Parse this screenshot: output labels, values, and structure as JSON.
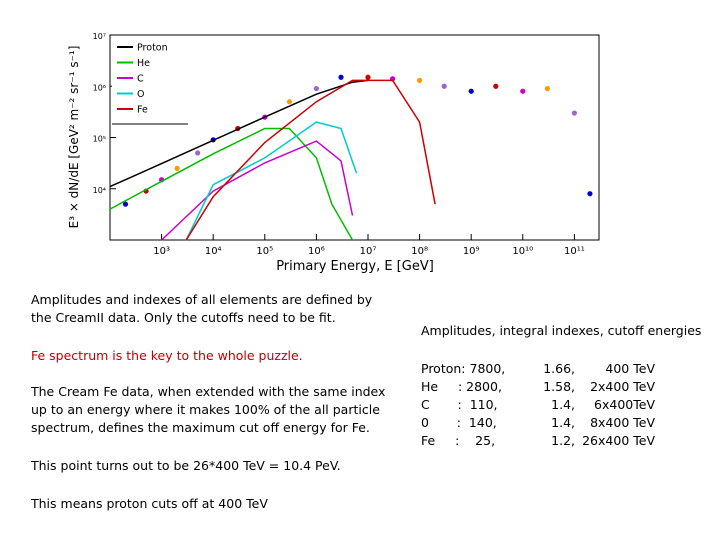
{
  "chart_data": {
    "type": "line",
    "xscale": "log",
    "yscale": "log",
    "xlim": [
      100,
      300000000000
    ],
    "ylim": [
      1000,
      10000000
    ],
    "xlabel": "Primary Energy, E [GeV]",
    "ylabel": "E³ × dN/dE [GeV² m⁻² sr⁻¹ s⁻¹]",
    "x_tick_labels": [
      "10³",
      "10⁴",
      "10⁵",
      "10⁶",
      "10⁷",
      "10⁸",
      "10⁹",
      "10¹⁰",
      "10¹¹"
    ],
    "y_tick_labels": [
      "10⁴",
      "10⁵",
      "10⁶",
      "10⁷"
    ],
    "legend_position": "top-left",
    "series": [
      {
        "name": "Proton",
        "color": "#000000",
        "x": [
          100,
          1000,
          10000,
          100000,
          1000000,
          5000000,
          10000000
        ],
        "y": [
          11000,
          31000,
          88000,
          250000,
          700000,
          1200000,
          1300000
        ]
      },
      {
        "name": "He",
        "color": "#00bb00",
        "x": [
          100,
          1000,
          10000,
          100000,
          300000,
          1000000,
          2000000,
          5000000
        ],
        "y": [
          4000,
          14000,
          48000,
          150000,
          150000,
          40000,
          5000,
          1000
        ]
      },
      {
        "name": "C",
        "color": "#cc00cc",
        "x": [
          1000,
          10000,
          100000,
          1000000,
          3000000,
          5000000
        ],
        "y": [
          1000,
          9000,
          32000,
          85000,
          35000,
          3000
        ]
      },
      {
        "name": "O",
        "color": "#00cccc",
        "x": [
          3000,
          10000,
          100000,
          1000000,
          3000000,
          6000000
        ],
        "y": [
          1000,
          12000,
          40000,
          200000,
          150000,
          20000
        ]
      },
      {
        "name": "Fe",
        "color": "#cc0000",
        "x": [
          3000,
          10000,
          100000,
          1000000,
          5000000,
          30000000,
          100000000,
          200000000
        ],
        "y": [
          1000,
          7000,
          80000,
          500000,
          1300000,
          1300000,
          200000,
          5000
        ]
      }
    ],
    "measured_data": {
      "x": [
        200,
        500,
        1000,
        2000,
        5000,
        10000,
        30000,
        100000,
        300000,
        1000000,
        3000000,
        10000000,
        30000000,
        100000000,
        300000000,
        1000000000,
        3000000000,
        10000000000,
        30000000000,
        100000000000,
        200000000000
      ],
      "y": [
        5000,
        9000,
        15000,
        25000,
        50000,
        90000,
        150000,
        250000,
        500000,
        900000,
        1500000,
        1500000,
        1400000,
        1300000,
        1000000,
        800000,
        1000000,
        800000,
        900000,
        300000,
        8000
      ]
    }
  },
  "text_left": {
    "lines": [
      "Amplitudes and indexes of all elements are defined by",
      "the CreamII data. Only the cutoffs need to be fit.",
      "Fe spectrum is the key to the whole puzzle.",
      "The Cream Fe data, when extended with the same index",
      "up to an energy where it makes 100% of the all particle",
      "spectrum,  defines the maximum cut off energy for Fe.",
      "This point turns out to be 26*400 TeV = 10.4 PeV.",
      "This means proton cuts off at 400 TeV"
    ]
  },
  "text_right": {
    "heading": "Amplitudes, integral indexes, cutoff energies",
    "table": [
      [
        "Proton: 7800,",
        "1.66,",
        "400 TeV"
      ],
      [
        "He     : 2800,",
        "1.58,",
        "2x400 TeV"
      ],
      [
        "C       :  110,",
        "1.4,",
        "6x400TeV"
      ],
      [
        "0       :  140,",
        "1.4,",
        "8x400 TeV"
      ],
      [
        "Fe     :    25,",
        "1.2,",
        "26x400 TeV"
      ]
    ]
  }
}
